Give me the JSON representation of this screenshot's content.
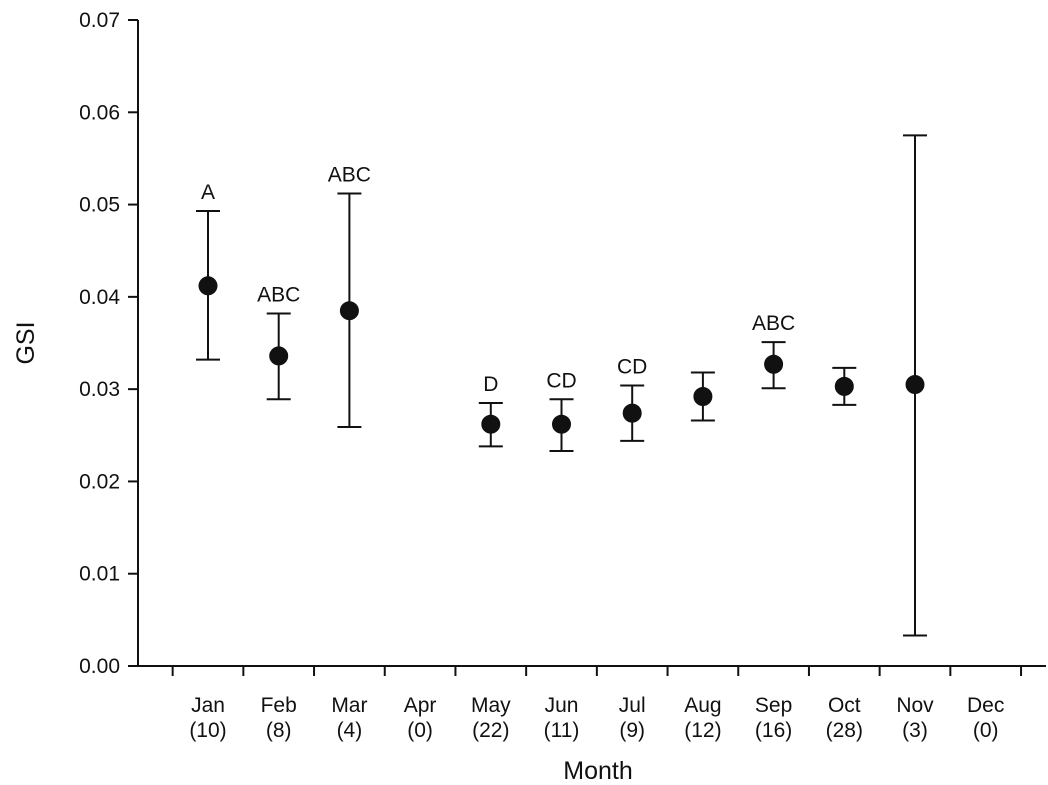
{
  "chart_data": {
    "type": "scatter",
    "xlabel": "Month",
    "ylabel": "GSI",
    "ylim": [
      0,
      0.07
    ],
    "yticks": [
      "0.00",
      "0.01",
      "0.02",
      "0.03",
      "0.04",
      "0.05",
      "0.06",
      "0.07"
    ],
    "grid": false,
    "categories": [
      {
        "month": "Jan",
        "n": "(10)"
      },
      {
        "month": "Feb",
        "n": "(8)"
      },
      {
        "month": "Mar",
        "n": "(4)"
      },
      {
        "month": "Apr",
        "n": "(0)"
      },
      {
        "month": "May",
        "n": "(22)"
      },
      {
        "month": "Jun",
        "n": "(11)"
      },
      {
        "month": "Jul",
        "n": "(9)"
      },
      {
        "month": "Aug",
        "n": "(12)"
      },
      {
        "month": "Sep",
        "n": "(16)"
      },
      {
        "month": "Oct",
        "n": "(28)"
      },
      {
        "month": "Nov",
        "n": "(3)"
      },
      {
        "month": "Dec",
        "n": "(0)"
      }
    ],
    "points": [
      {
        "month": "Jan",
        "mean": 0.0412,
        "lower": 0.0332,
        "upper": 0.0493,
        "label": "A"
      },
      {
        "month": "Feb",
        "mean": 0.0336,
        "lower": 0.0289,
        "upper": 0.0382,
        "label": "ABC"
      },
      {
        "month": "Mar",
        "mean": 0.0385,
        "lower": 0.0259,
        "upper": 0.0512,
        "label": "ABC"
      },
      {
        "month": "May",
        "mean": 0.0262,
        "lower": 0.0238,
        "upper": 0.0285,
        "label": "D"
      },
      {
        "month": "Jun",
        "mean": 0.0262,
        "lower": 0.0233,
        "upper": 0.0289,
        "label": "CD"
      },
      {
        "month": "Jul",
        "mean": 0.0274,
        "lower": 0.0244,
        "upper": 0.0304,
        "label": "CD"
      },
      {
        "month": "Aug",
        "mean": 0.0292,
        "lower": 0.0266,
        "upper": 0.0318,
        "label": ""
      },
      {
        "month": "Sep",
        "mean": 0.0327,
        "lower": 0.0301,
        "upper": 0.0351,
        "label": "ABC"
      },
      {
        "month": "Oct",
        "mean": 0.0303,
        "lower": 0.0283,
        "upper": 0.0323,
        "label": ""
      },
      {
        "month": "Nov",
        "mean": 0.0305,
        "lower": 0.0033,
        "upper": 0.0575,
        "label": ""
      }
    ]
  }
}
